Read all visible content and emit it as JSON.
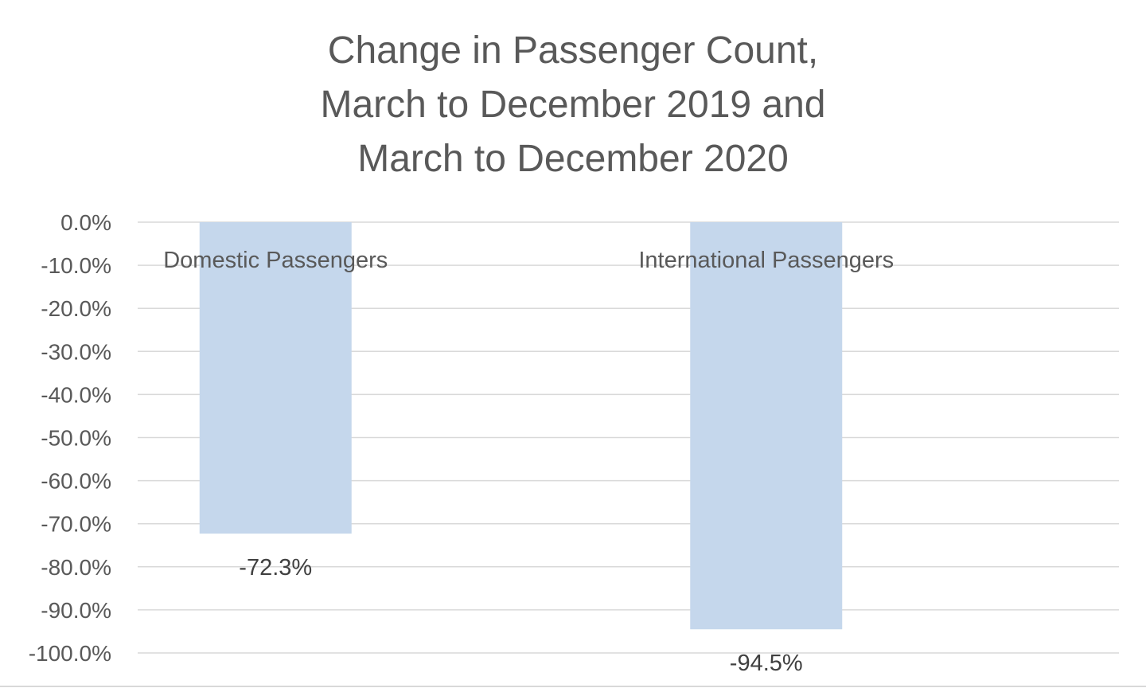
{
  "chart_data": {
    "type": "bar",
    "title_lines": [
      "Change in Passenger Count,",
      "March to December 2019 and",
      "March to December 2020"
    ],
    "categories": [
      "Domestic Passengers",
      "International Passengers"
    ],
    "values": [
      -72.3,
      -94.5
    ],
    "data_labels": [
      "-72.3%",
      "-94.5%"
    ],
    "ylim": [
      -100,
      0
    ],
    "yticks": [
      0,
      -10,
      -20,
      -30,
      -40,
      -50,
      -60,
      -70,
      -80,
      -90,
      -100
    ],
    "ytick_labels": [
      "0.0%",
      "-10.0%",
      "-20.0%",
      "-30.0%",
      "-40.0%",
      "-50.0%",
      "-60.0%",
      "-70.0%",
      "-80.0%",
      "-90.0%",
      "-100.0%"
    ],
    "category_label_position": "top",
    "grid": true,
    "legend": "none",
    "bar_color": "#c5d7ec",
    "gridline_color": "#d9d9d9"
  }
}
